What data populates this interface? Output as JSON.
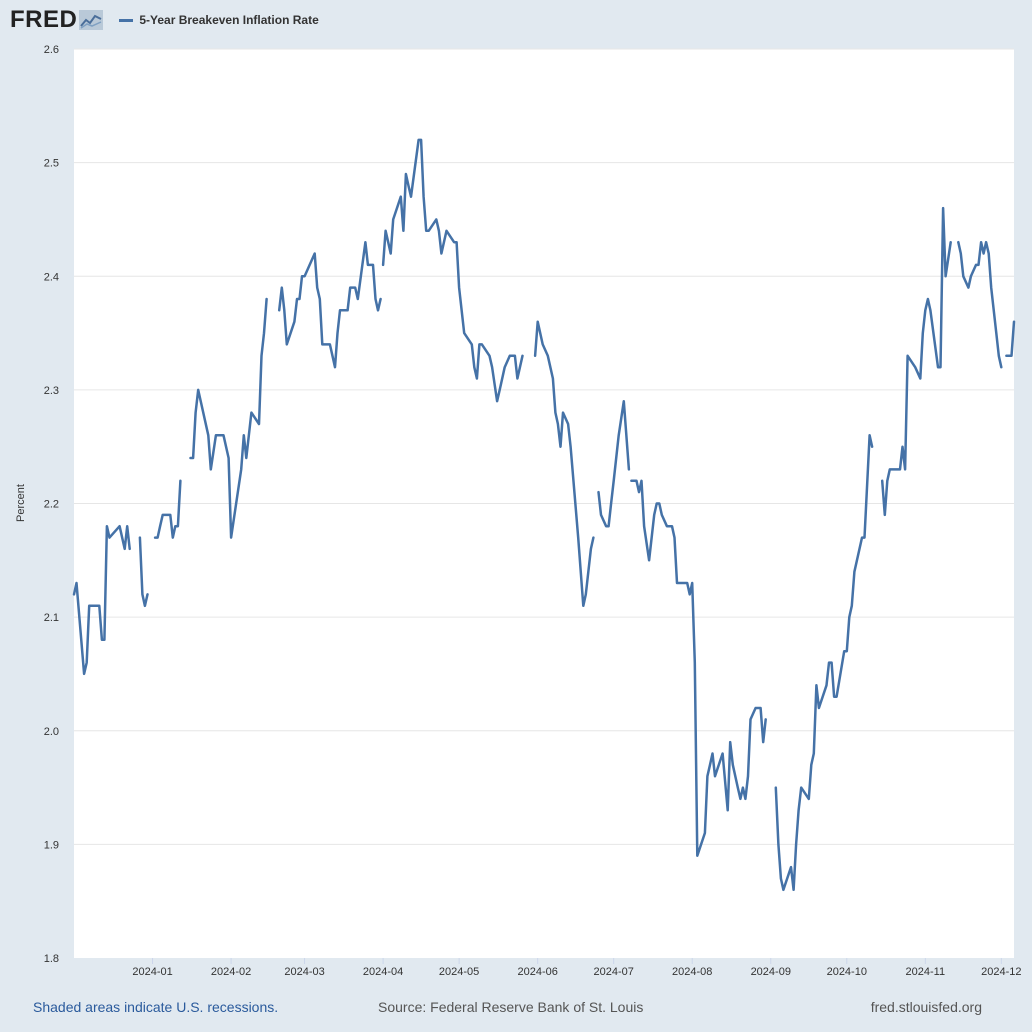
{
  "header": {
    "logo_text": "FRED",
    "legend_label": "5-Year Breakeven Inflation Rate",
    "series_color": "#4572a7"
  },
  "footer": {
    "recessions_note": "Shaded areas indicate U.S. recessions.",
    "source": "Source: Federal Reserve Bank of St. Louis",
    "site": "fred.stlouisfed.org"
  },
  "chart_data": {
    "type": "line",
    "ylabel": "Percent",
    "ylim": [
      1.8,
      2.6
    ],
    "yticks": [
      "1.8",
      "1.9",
      "2.0",
      "2.1",
      "2.2",
      "2.3",
      "2.4",
      "2.5",
      "2.6"
    ],
    "xticks": [
      "2024-01",
      "2024-02",
      "2024-03",
      "2024-04",
      "2024-05",
      "2024-06",
      "2024-07",
      "2024-08",
      "2024-09",
      "2024-10",
      "2024-11",
      "2024-12"
    ],
    "grid": true,
    "legend": "top-left",
    "series": [
      {
        "name": "5-Year Breakeven Inflation Rate",
        "segments": [
          [
            [
              "2023-12-01",
              2.12
            ],
            [
              "2023-12-02",
              2.13
            ],
            [
              "2023-12-05",
              2.05
            ],
            [
              "2023-12-06",
              2.06
            ],
            [
              "2023-12-07",
              2.11
            ],
            [
              "2023-12-08",
              2.11
            ],
            [
              "2023-12-11",
              2.11
            ],
            [
              "2023-12-12",
              2.08
            ],
            [
              "2023-12-13",
              2.08
            ],
            [
              "2023-12-14",
              2.18
            ],
            [
              "2023-12-15",
              2.17
            ],
            [
              "2023-12-19",
              2.18
            ],
            [
              "2023-12-21",
              2.16
            ],
            [
              "2023-12-22",
              2.18
            ],
            [
              "2023-12-23",
              2.16
            ]
          ],
          [
            [
              "2023-12-27",
              2.17
            ],
            [
              "2023-12-28",
              2.12
            ],
            [
              "2023-12-29",
              2.11
            ],
            [
              "2023-12-30",
              2.12
            ]
          ],
          [
            [
              "2024-01-02",
              2.17
            ],
            [
              "2024-01-03",
              2.17
            ],
            [
              "2024-01-04",
              2.18
            ],
            [
              "2024-01-05",
              2.19
            ],
            [
              "2024-01-08",
              2.19
            ],
            [
              "2024-01-09",
              2.17
            ],
            [
              "2024-01-10",
              2.18
            ],
            [
              "2024-01-11",
              2.18
            ],
            [
              "2024-01-12",
              2.22
            ]
          ],
          [
            [
              "2024-01-16",
              2.24
            ],
            [
              "2024-01-17",
              2.24
            ],
            [
              "2024-01-18",
              2.28
            ],
            [
              "2024-01-19",
              2.3
            ],
            [
              "2024-01-23",
              2.26
            ],
            [
              "2024-01-24",
              2.23
            ],
            [
              "2024-01-26",
              2.26
            ],
            [
              "2024-01-29",
              2.26
            ],
            [
              "2024-01-31",
              2.24
            ],
            [
              "2024-02-01",
              2.17
            ],
            [
              "2024-02-05",
              2.23
            ],
            [
              "2024-02-06",
              2.26
            ],
            [
              "2024-02-07",
              2.24
            ],
            [
              "2024-02-09",
              2.28
            ],
            [
              "2024-02-12",
              2.27
            ],
            [
              "2024-02-13",
              2.33
            ],
            [
              "2024-02-14",
              2.35
            ],
            [
              "2024-02-15",
              2.38
            ]
          ],
          [
            [
              "2024-02-20",
              2.37
            ],
            [
              "2024-02-21",
              2.39
            ],
            [
              "2024-02-22",
              2.37
            ],
            [
              "2024-02-23",
              2.34
            ],
            [
              "2024-02-26",
              2.36
            ],
            [
              "2024-02-27",
              2.38
            ],
            [
              "2024-02-28",
              2.38
            ],
            [
              "2024-02-29",
              2.4
            ],
            [
              "2024-03-01",
              2.4
            ],
            [
              "2024-03-05",
              2.42
            ],
            [
              "2024-03-06",
              2.39
            ],
            [
              "2024-03-07",
              2.38
            ],
            [
              "2024-03-08",
              2.34
            ],
            [
              "2024-03-11",
              2.34
            ],
            [
              "2024-03-13",
              2.32
            ],
            [
              "2024-03-14",
              2.35
            ],
            [
              "2024-03-15",
              2.37
            ],
            [
              "2024-03-18",
              2.37
            ],
            [
              "2024-03-19",
              2.39
            ],
            [
              "2024-03-21",
              2.39
            ],
            [
              "2024-03-22",
              2.38
            ],
            [
              "2024-03-25",
              2.43
            ],
            [
              "2024-03-26",
              2.41
            ],
            [
              "2024-03-28",
              2.41
            ],
            [
              "2024-03-29",
              2.38
            ],
            [
              "2024-03-30",
              2.37
            ],
            [
              "2024-03-31",
              2.38
            ]
          ],
          [
            [
              "2024-04-01",
              2.41
            ],
            [
              "2024-04-02",
              2.44
            ],
            [
              "2024-04-03",
              2.43
            ],
            [
              "2024-04-04",
              2.42
            ],
            [
              "2024-04-05",
              2.45
            ],
            [
              "2024-04-08",
              2.47
            ],
            [
              "2024-04-09",
              2.44
            ],
            [
              "2024-04-10",
              2.49
            ],
            [
              "2024-04-11",
              2.48
            ],
            [
              "2024-04-12",
              2.47
            ],
            [
              "2024-04-15",
              2.52
            ],
            [
              "2024-04-16",
              2.52
            ],
            [
              "2024-04-17",
              2.47
            ],
            [
              "2024-04-18",
              2.44
            ],
            [
              "2024-04-19",
              2.44
            ],
            [
              "2024-04-22",
              2.45
            ],
            [
              "2024-04-23",
              2.44
            ],
            [
              "2024-04-24",
              2.42
            ],
            [
              "2024-04-26",
              2.44
            ],
            [
              "2024-04-29",
              2.43
            ],
            [
              "2024-04-30",
              2.43
            ],
            [
              "2024-05-01",
              2.39
            ],
            [
              "2024-05-03",
              2.35
            ],
            [
              "2024-05-06",
              2.34
            ],
            [
              "2024-05-07",
              2.32
            ],
            [
              "2024-05-08",
              2.31
            ],
            [
              "2024-05-09",
              2.34
            ],
            [
              "2024-05-10",
              2.34
            ],
            [
              "2024-05-13",
              2.33
            ],
            [
              "2024-05-14",
              2.32
            ],
            [
              "2024-05-16",
              2.29
            ],
            [
              "2024-05-17",
              2.3
            ],
            [
              "2024-05-19",
              2.32
            ],
            [
              "2024-05-21",
              2.33
            ],
            [
              "2024-05-23",
              2.33
            ],
            [
              "2024-05-24",
              2.31
            ],
            [
              "2024-05-26",
              2.33
            ]
          ],
          [
            [
              "2024-05-31",
              2.33
            ],
            [
              "2024-06-01",
              2.36
            ],
            [
              "2024-06-03",
              2.34
            ],
            [
              "2024-06-05",
              2.33
            ],
            [
              "2024-06-07",
              2.31
            ],
            [
              "2024-06-08",
              2.28
            ],
            [
              "2024-06-09",
              2.27
            ],
            [
              "2024-06-10",
              2.25
            ],
            [
              "2024-06-11",
              2.28
            ],
            [
              "2024-06-13",
              2.27
            ],
            [
              "2024-06-14",
              2.25
            ],
            [
              "2024-06-17",
              2.17
            ],
            [
              "2024-06-19",
              2.11
            ],
            [
              "2024-06-20",
              2.12
            ],
            [
              "2024-06-22",
              2.16
            ],
            [
              "2024-06-23",
              2.17
            ]
          ],
          [
            [
              "2024-06-25",
              2.21
            ],
            [
              "2024-06-26",
              2.19
            ],
            [
              "2024-06-28",
              2.18
            ],
            [
              "2024-06-29",
              2.18
            ],
            [
              "2024-06-30",
              2.2
            ],
            [
              "2024-07-01",
              2.22
            ],
            [
              "2024-07-03",
              2.26
            ],
            [
              "2024-07-05",
              2.29
            ],
            [
              "2024-07-07",
              2.23
            ]
          ],
          [
            [
              "2024-07-08",
              2.22
            ],
            [
              "2024-07-09",
              2.22
            ],
            [
              "2024-07-10",
              2.22
            ],
            [
              "2024-07-11",
              2.21
            ],
            [
              "2024-07-12",
              2.22
            ],
            [
              "2024-07-13",
              2.18
            ],
            [
              "2024-07-15",
              2.15
            ],
            [
              "2024-07-17",
              2.19
            ],
            [
              "2024-07-18",
              2.2
            ],
            [
              "2024-07-19",
              2.2
            ],
            [
              "2024-07-20",
              2.19
            ],
            [
              "2024-07-22",
              2.18
            ],
            [
              "2024-07-24",
              2.18
            ],
            [
              "2024-07-25",
              2.17
            ],
            [
              "2024-07-26",
              2.13
            ],
            [
              "2024-07-29",
              2.13
            ],
            [
              "2024-07-30",
              2.13
            ],
            [
              "2024-07-31",
              2.12
            ],
            [
              "2024-08-01",
              2.13
            ],
            [
              "2024-08-02",
              2.06
            ],
            [
              "2024-08-03",
              1.89
            ],
            [
              "2024-08-06",
              1.91
            ],
            [
              "2024-08-07",
              1.96
            ],
            [
              "2024-08-08",
              1.97
            ],
            [
              "2024-08-09",
              1.98
            ],
            [
              "2024-08-10",
              1.96
            ],
            [
              "2024-08-13",
              1.98
            ],
            [
              "2024-08-15",
              1.93
            ],
            [
              "2024-08-16",
              1.99
            ],
            [
              "2024-08-17",
              1.97
            ],
            [
              "2024-08-19",
              1.95
            ],
            [
              "2024-08-20",
              1.94
            ],
            [
              "2024-08-21",
              1.95
            ],
            [
              "2024-08-22",
              1.94
            ],
            [
              "2024-08-23",
              1.96
            ],
            [
              "2024-08-24",
              2.01
            ],
            [
              "2024-08-26",
              2.02
            ],
            [
              "2024-08-28",
              2.02
            ],
            [
              "2024-08-29",
              1.99
            ],
            [
              "2024-08-30",
              2.01
            ]
          ],
          [
            [
              "2024-09-03",
              1.95
            ],
            [
              "2024-09-04",
              1.9
            ],
            [
              "2024-09-05",
              1.87
            ],
            [
              "2024-09-06",
              1.86
            ],
            [
              "2024-09-09",
              1.88
            ],
            [
              "2024-09-10",
              1.86
            ],
            [
              "2024-09-11",
              1.9
            ],
            [
              "2024-09-12",
              1.93
            ],
            [
              "2024-09-13",
              1.95
            ],
            [
              "2024-09-16",
              1.94
            ],
            [
              "2024-09-17",
              1.97
            ],
            [
              "2024-09-18",
              1.98
            ],
            [
              "2024-09-19",
              2.04
            ],
            [
              "2024-09-20",
              2.02
            ],
            [
              "2024-09-23",
              2.04
            ],
            [
              "2024-09-24",
              2.06
            ],
            [
              "2024-09-25",
              2.06
            ],
            [
              "2024-09-26",
              2.03
            ],
            [
              "2024-09-27",
              2.03
            ],
            [
              "2024-09-30",
              2.07
            ],
            [
              "2024-10-01",
              2.07
            ],
            [
              "2024-10-02",
              2.1
            ],
            [
              "2024-10-03",
              2.11
            ],
            [
              "2024-10-04",
              2.14
            ],
            [
              "2024-10-07",
              2.17
            ],
            [
              "2024-10-08",
              2.17
            ],
            [
              "2024-10-10",
              2.26
            ],
            [
              "2024-10-11",
              2.25
            ]
          ],
          [
            [
              "2024-10-15",
              2.22
            ],
            [
              "2024-10-16",
              2.19
            ],
            [
              "2024-10-17",
              2.22
            ],
            [
              "2024-10-18",
              2.23
            ],
            [
              "2024-10-21",
              2.23
            ],
            [
              "2024-10-22",
              2.23
            ],
            [
              "2024-10-23",
              2.25
            ],
            [
              "2024-10-24",
              2.23
            ],
            [
              "2024-10-25",
              2.33
            ],
            [
              "2024-10-28",
              2.32
            ],
            [
              "2024-10-30",
              2.31
            ],
            [
              "2024-10-31",
              2.35
            ],
            [
              "2024-11-01",
              2.37
            ],
            [
              "2024-11-02",
              2.38
            ],
            [
              "2024-11-03",
              2.37
            ],
            [
              "2024-11-06",
              2.32
            ],
            [
              "2024-11-07",
              2.32
            ],
            [
              "2024-11-08",
              2.46
            ],
            [
              "2024-11-09",
              2.4
            ],
            [
              "2024-11-11",
              2.43
            ]
          ],
          [
            [
              "2024-11-14",
              2.43
            ],
            [
              "2024-11-15",
              2.42
            ],
            [
              "2024-11-16",
              2.4
            ],
            [
              "2024-11-18",
              2.39
            ],
            [
              "2024-11-19",
              2.4
            ],
            [
              "2024-11-21",
              2.41
            ],
            [
              "2024-11-22",
              2.41
            ],
            [
              "2024-11-23",
              2.43
            ],
            [
              "2024-11-24",
              2.42
            ],
            [
              "2024-11-25",
              2.43
            ],
            [
              "2024-11-26",
              2.42
            ],
            [
              "2024-11-27",
              2.39
            ],
            [
              "2024-11-29",
              2.35
            ],
            [
              "2024-11-30",
              2.33
            ],
            [
              "2024-12-01",
              2.32
            ]
          ],
          [
            [
              "2024-12-03",
              2.33
            ],
            [
              "2024-12-04",
              2.33
            ],
            [
              "2024-12-05",
              2.33
            ],
            [
              "2024-12-06",
              2.36
            ]
          ]
        ]
      }
    ]
  }
}
